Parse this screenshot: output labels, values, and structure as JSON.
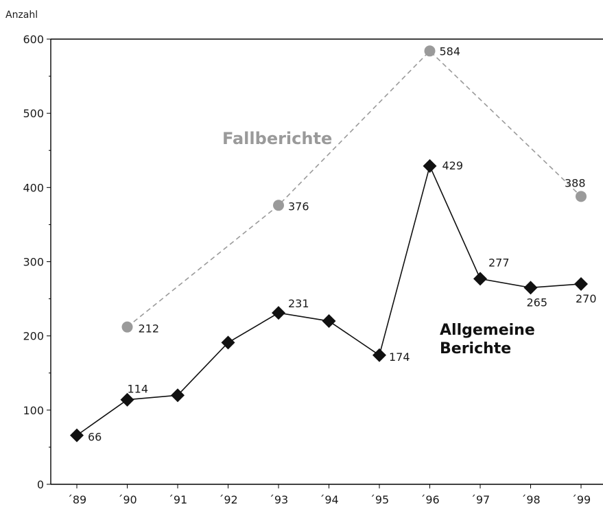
{
  "chart_data": {
    "type": "line",
    "ylabel": "Anzahl",
    "ylim": [
      0,
      600
    ],
    "yticks": [
      0,
      100,
      200,
      300,
      400,
      500,
      600
    ],
    "categories": [
      "´89",
      "´90",
      "´91",
      "´92",
      "´93",
      "´94",
      "´95",
      "´96",
      "´97",
      "´98",
      "´99"
    ],
    "series": [
      {
        "name": "Allgemeine Berichte",
        "label_lines": [
          "Allgemeine",
          "Berichte"
        ],
        "color": "#111111",
        "marker": "diamond",
        "line_style": "solid",
        "values": [
          66,
          114,
          120,
          191,
          231,
          220,
          174,
          429,
          277,
          265,
          270
        ],
        "data_labels": [
          "66",
          "114",
          "",
          "",
          "231",
          "",
          "174",
          "429",
          "277",
          "265",
          "270"
        ]
      },
      {
        "name": "Fallberichte",
        "color": "#9a9a9a",
        "marker": "circle",
        "line_style": "dashed",
        "values": [
          null,
          212,
          null,
          null,
          376,
          null,
          null,
          584,
          null,
          null,
          388
        ],
        "data_labels": [
          "",
          "212",
          "",
          "",
          "376",
          "",
          "",
          "584",
          "",
          "",
          "388"
        ]
      }
    ]
  }
}
